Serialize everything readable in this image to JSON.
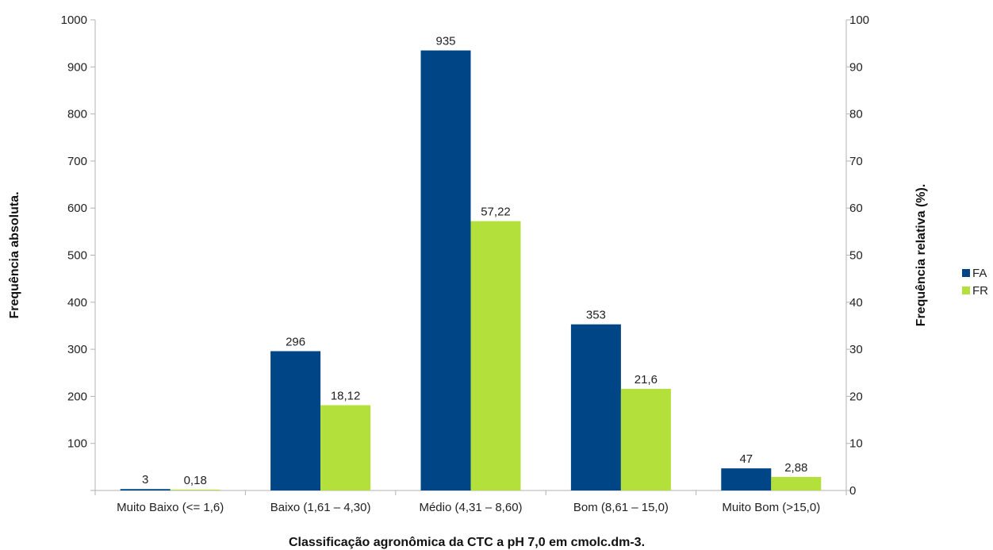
{
  "chart_data": {
    "type": "bar",
    "categories": [
      "Muito Baixo (<= 1,6)",
      "Baixo (1,61 – 4,30)",
      "Médio (4,31 – 8,60)",
      "Bom (8,61 – 15,0)",
      "Muito Bom (>15,0)"
    ],
    "series": [
      {
        "name": "FA",
        "axis": "left",
        "color": "#004586",
        "values": [
          3,
          296,
          935,
          353,
          47
        ],
        "labels": [
          "3",
          "296",
          "935",
          "353",
          "47"
        ]
      },
      {
        "name": "FR",
        "axis": "right",
        "color": "#b3e03a",
        "values": [
          0.18,
          18.12,
          57.22,
          21.6,
          2.88
        ],
        "labels": [
          "0,18",
          "18,12",
          "57,22",
          "21,6",
          "2,88"
        ]
      }
    ],
    "xlabel": "Classificação agronômica da CTC a pH 7,0 em cmolc.dm-3.",
    "ylabel": "Frequência absoluta.",
    "y2label": "Frequência relativa (%).",
    "ylim": [
      0,
      1000
    ],
    "y2lim": [
      0,
      100
    ],
    "yticks": [
      "100",
      "200",
      "300",
      "400",
      "500",
      "600",
      "700",
      "800",
      "900",
      "1000"
    ],
    "y2ticks": [
      "0",
      "10",
      "20",
      "30",
      "40",
      "50",
      "60",
      "70",
      "80",
      "90",
      "100"
    ],
    "grid": false,
    "legend": "right"
  }
}
